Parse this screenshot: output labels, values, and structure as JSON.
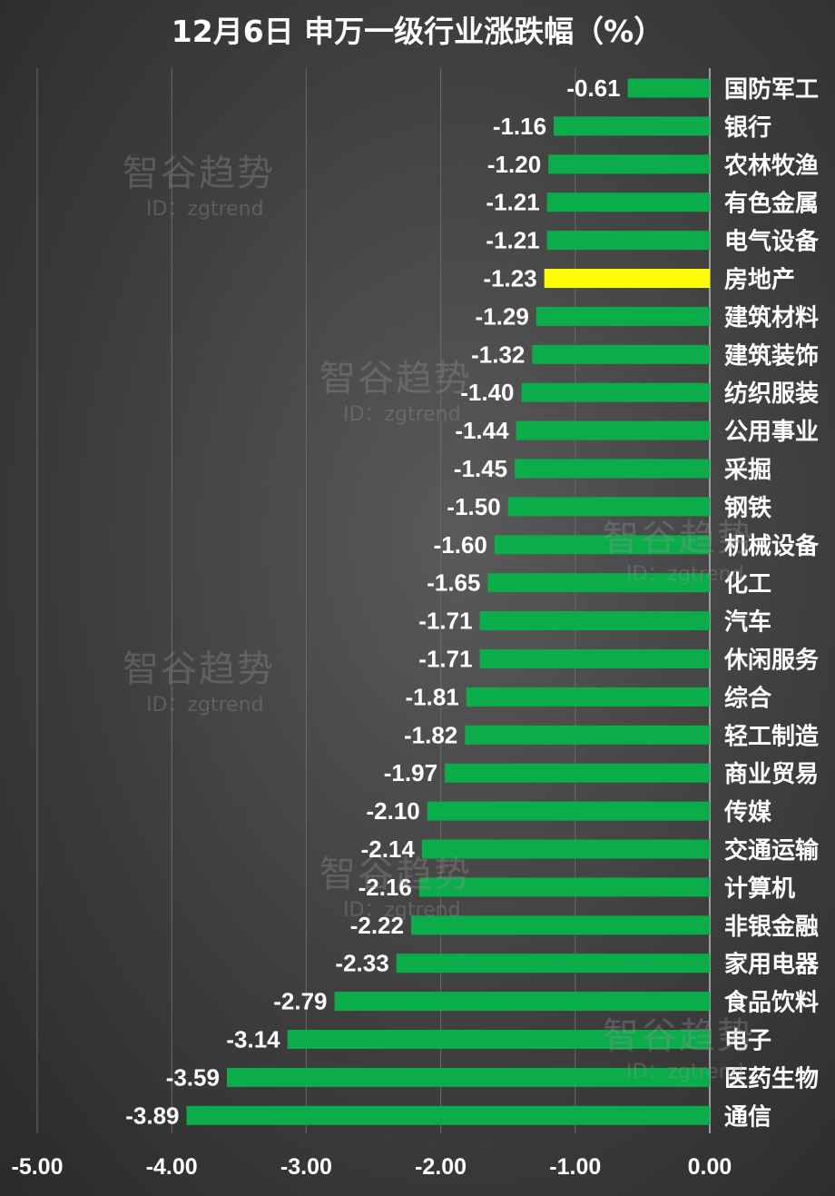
{
  "watermark": {
    "brand": "智谷趋势",
    "id": "ID：zgtrend"
  },
  "colors": {
    "bar": "#0aad4a",
    "highlight": "#ffff00",
    "text": "#ffffff",
    "grid": "#6a6a6a"
  },
  "chart_data": {
    "type": "bar",
    "orientation": "horizontal",
    "title": "12月6日 申万一级行业涨跌幅（%）",
    "xlim": [
      -5.0,
      0.0
    ],
    "x_ticks": [
      "-5.00",
      "-4.00",
      "-3.00",
      "-2.00",
      "-1.00",
      "0.00"
    ],
    "x_tick_values": [
      -5,
      -4,
      -3,
      -2,
      -1,
      0
    ],
    "highlight_category": "房地产",
    "categories": [
      "国防军工",
      "银行",
      "农林牧渔",
      "有色金属",
      "电气设备",
      "房地产",
      "建筑材料",
      "建筑装饰",
      "纺织服装",
      "公用事业",
      "采掘",
      "钢铁",
      "机械设备",
      "化工",
      "汽车",
      "休闲服务",
      "综合",
      "轻工制造",
      "商业贸易",
      "传媒",
      "交通运输",
      "计算机",
      "非银金融",
      "家用电器",
      "食品饮料",
      "电子",
      "医药生物",
      "通信"
    ],
    "values": [
      -0.61,
      -1.16,
      -1.2,
      -1.21,
      -1.21,
      -1.23,
      -1.29,
      -1.32,
      -1.4,
      -1.44,
      -1.45,
      -1.5,
      -1.6,
      -1.65,
      -1.71,
      -1.71,
      -1.81,
      -1.82,
      -1.97,
      -2.1,
      -2.14,
      -2.16,
      -2.22,
      -2.33,
      -2.79,
      -3.14,
      -3.59,
      -3.89
    ],
    "value_labels": [
      "-0.61",
      "-1.16",
      "-1.20",
      "-1.21",
      "-1.21",
      "-1.23",
      "-1.29",
      "-1.32",
      "-1.40",
      "-1.44",
      "-1.45",
      "-1.50",
      "-1.60",
      "-1.65",
      "-1.71",
      "-1.71",
      "-1.81",
      "-1.82",
      "-1.97",
      "-2.10",
      "-2.14",
      "-2.16",
      "-2.22",
      "-2.33",
      "-2.79",
      "-3.14",
      "-3.59",
      "-3.89"
    ]
  }
}
